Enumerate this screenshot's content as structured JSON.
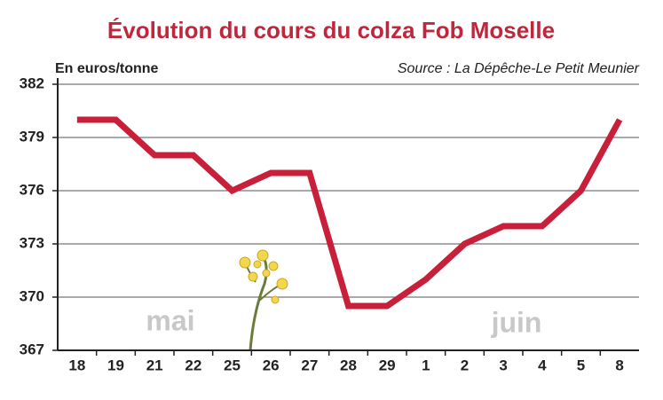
{
  "chart_data": {
    "type": "line",
    "title": "Évolution du cours du colza Fob Moselle",
    "y_label": "En euros/tonne",
    "source": "Source : La Dépêche-Le Petit Meunier",
    "annotations": [
      "mai",
      "juin"
    ],
    "categories": [
      "18",
      "19",
      "21",
      "22",
      "25",
      "26",
      "27",
      "28",
      "29",
      "1",
      "2",
      "3",
      "4",
      "5",
      "8"
    ],
    "values": [
      380,
      380,
      378,
      378,
      376,
      377,
      377,
      369.5,
      369.5,
      371,
      373,
      374,
      374,
      376,
      380
    ],
    "color": "#c8203a",
    "ylim": [
      367,
      382
    ],
    "yticks": [
      367,
      370,
      373,
      376,
      379,
      382
    ],
    "grid": true
  }
}
